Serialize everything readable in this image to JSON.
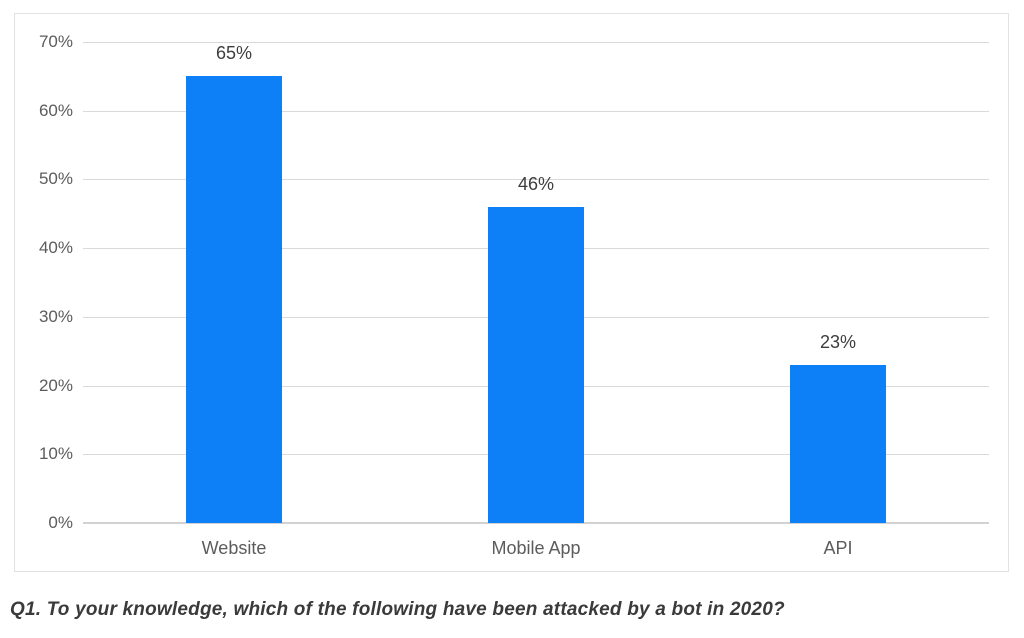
{
  "caption": "Q1. To your knowledge, which of the following have been attacked by a bot in 2020?",
  "colors": {
    "bar": "#0d80f7",
    "gridline": "#dadada",
    "axis_line": "#d2d2d2",
    "tick_label": "#5c5c5c",
    "category_label": "#5c5c5c",
    "value_label": "#3d3d3d",
    "plot_border": "#e2e2e2",
    "background": "#ffffff"
  },
  "chart_data": {
    "type": "bar",
    "categories": [
      "Website",
      "Mobile App",
      "API"
    ],
    "values": [
      65,
      46,
      23
    ],
    "value_labels": [
      "65%",
      "46%",
      "23%"
    ],
    "title": "",
    "xlabel": "",
    "ylabel": "",
    "ylim": [
      0,
      70
    ],
    "ytick_step": 10,
    "ytick_labels": [
      "0%",
      "10%",
      "20%",
      "30%",
      "40%",
      "50%",
      "60%",
      "70%"
    ],
    "grid": true,
    "legend": false
  }
}
